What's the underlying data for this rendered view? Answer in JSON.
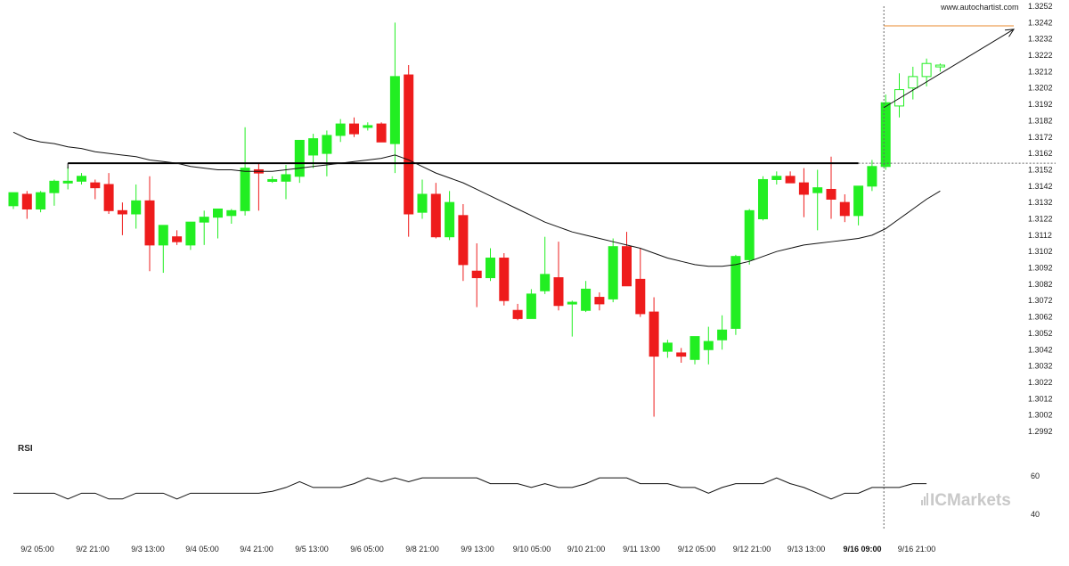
{
  "watermark": "www.autochartist.com",
  "brand": {
    "text": "ICMarkets"
  },
  "colors": {
    "bull": "#22ee22",
    "bear": "#ee1c1c",
    "wick": "#222222",
    "level": "#000000",
    "target": "#e88a2e",
    "ma": "#111111",
    "dashed": "#666666"
  },
  "chart_data": [
    {
      "type": "candlestick",
      "title": "",
      "ylim": [
        1.2992,
        1.3252
      ],
      "y_ticks": [
        "1.3252",
        "1.3242",
        "1.3232",
        "1.3222",
        "1.3212",
        "1.3202",
        "1.3192",
        "1.3182",
        "1.3172",
        "1.3162",
        "1.3152",
        "1.3142",
        "1.3132",
        "1.3122",
        "1.3112",
        "1.3102",
        "1.3092",
        "1.3082",
        "1.3072",
        "1.3062",
        "1.3052",
        "1.3042",
        "1.3032",
        "1.3022",
        "1.3012",
        "1.3002",
        "1.2992"
      ],
      "x_ticks": [
        "9/2 05:00",
        "9/2 21:00",
        "9/3 13:00",
        "9/4 05:00",
        "9/4 21:00",
        "9/5 13:00",
        "9/6 05:00",
        "9/8 21:00",
        "9/9 13:00",
        "9/10 05:00",
        "9/10 21:00",
        "9/11 13:00",
        "9/12 05:00",
        "9/12 21:00",
        "9/13 13:00",
        "9/16 09:00",
        "9/16 21:00"
      ],
      "x_tick_bold": "9/16 09:00",
      "candles": [
        [
          1.313,
          1.3138,
          1.3128,
          1.3138
        ],
        [
          1.3137,
          1.3139,
          1.3122,
          1.3128
        ],
        [
          1.3128,
          1.3139,
          1.3126,
          1.3138
        ],
        [
          1.3138,
          1.3146,
          1.313,
          1.3145
        ],
        [
          1.3145,
          1.3154,
          1.314,
          1.3145
        ],
        [
          1.3145,
          1.315,
          1.3143,
          1.3148
        ],
        [
          1.3144,
          1.3146,
          1.3134,
          1.3141
        ],
        [
          1.3143,
          1.315,
          1.3125,
          1.3127
        ],
        [
          1.3127,
          1.3132,
          1.3112,
          1.3125
        ],
        [
          1.3125,
          1.3143,
          1.3116,
          1.3133
        ],
        [
          1.3133,
          1.3148,
          1.309,
          1.3106
        ],
        [
          1.3106,
          1.3117,
          1.3089,
          1.3118
        ],
        [
          1.3111,
          1.3115,
          1.3106,
          1.3108
        ],
        [
          1.3106,
          1.312,
          1.3103,
          1.312
        ],
        [
          1.312,
          1.3127,
          1.3106,
          1.3123
        ],
        [
          1.3123,
          1.3128,
          1.311,
          1.3128
        ],
        [
          1.3124,
          1.3128,
          1.3119,
          1.3127
        ],
        [
          1.3127,
          1.3178,
          1.3124,
          1.3153
        ],
        [
          1.3152,
          1.3156,
          1.3127,
          1.315
        ],
        [
          1.3146,
          1.3148,
          1.3144,
          1.3146
        ],
        [
          1.3145,
          1.3155,
          1.3134,
          1.3149
        ],
        [
          1.3148,
          1.3168,
          1.3144,
          1.317
        ],
        [
          1.3161,
          1.3174,
          1.3153,
          1.3171
        ],
        [
          1.3162,
          1.3176,
          1.3148,
          1.3173
        ],
        [
          1.3173,
          1.3183,
          1.3169,
          1.318
        ],
        [
          1.318,
          1.3184,
          1.3172,
          1.3174
        ],
        [
          1.3179,
          1.3181,
          1.3176,
          1.3179
        ],
        [
          1.318,
          1.3181,
          1.3169,
          1.3169
        ],
        [
          1.3168,
          1.3242,
          1.315,
          1.3209
        ],
        [
          1.321,
          1.3216,
          1.3111,
          1.3125
        ],
        [
          1.3126,
          1.3146,
          1.3122,
          1.3137
        ],
        [
          1.3137,
          1.3144,
          1.311,
          1.3111
        ],
        [
          1.3111,
          1.3139,
          1.3109,
          1.3132
        ],
        [
          1.3124,
          1.3131,
          1.3084,
          1.3094
        ],
        [
          1.309,
          1.3107,
          1.3068,
          1.3086
        ],
        [
          1.3086,
          1.3104,
          1.3084,
          1.3098
        ],
        [
          1.3098,
          1.3101,
          1.3069,
          1.3072
        ],
        [
          1.3066,
          1.307,
          1.306,
          1.3061
        ],
        [
          1.3061,
          1.3079,
          1.3062,
          1.3076
        ],
        [
          1.3078,
          1.3111,
          1.3076,
          1.3088
        ],
        [
          1.3086,
          1.3108,
          1.3066,
          1.3069
        ],
        [
          1.307,
          1.3072,
          1.305,
          1.3071
        ],
        [
          1.3066,
          1.3084,
          1.3065,
          1.3079
        ],
        [
          1.3074,
          1.3077,
          1.3066,
          1.307
        ],
        [
          1.3073,
          1.311,
          1.3071,
          1.3105
        ],
        [
          1.3105,
          1.3114,
          1.3081,
          1.3081
        ],
        [
          1.3085,
          1.3104,
          1.3062,
          1.3064
        ],
        [
          1.3065,
          1.3074,
          1.3001,
          1.3038
        ],
        [
          1.3041,
          1.3048,
          1.3037,
          1.3046
        ],
        [
          1.304,
          1.3043,
          1.3034,
          1.3038
        ],
        [
          1.3036,
          1.305,
          1.3033,
          1.305
        ],
        [
          1.3042,
          1.3056,
          1.3033,
          1.3047
        ],
        [
          1.3048,
          1.3063,
          1.3042,
          1.3054
        ],
        [
          1.3055,
          1.31,
          1.3051,
          1.3099
        ],
        [
          1.3097,
          1.3128,
          1.3094,
          1.3127
        ],
        [
          1.3122,
          1.3148,
          1.3121,
          1.3146
        ],
        [
          1.3146,
          1.3151,
          1.3143,
          1.3148
        ],
        [
          1.3148,
          1.3151,
          1.3144,
          1.3144
        ],
        [
          1.3144,
          1.3153,
          1.3123,
          1.3137
        ],
        [
          1.3138,
          1.3152,
          1.3115,
          1.3141
        ],
        [
          1.314,
          1.316,
          1.3122,
          1.3134
        ],
        [
          1.3132,
          1.3137,
          1.312,
          1.3124
        ],
        [
          1.3124,
          1.3141,
          1.3118,
          1.3142
        ],
        [
          1.3142,
          1.3158,
          1.3139,
          1.3154
        ],
        [
          1.3154,
          1.3198,
          1.3152,
          1.3193
        ],
        [
          1.3191,
          1.3211,
          1.3184,
          1.3201
        ],
        [
          1.3202,
          1.3215,
          1.3195,
          1.3209
        ],
        [
          1.3209,
          1.322,
          1.3203,
          1.3217
        ],
        [
          1.3215,
          1.3217,
          1.3212,
          1.3216
        ]
      ],
      "moving_average": [
        1.3175,
        1.3171,
        1.3169,
        1.3168,
        1.3166,
        1.3165,
        1.3163,
        1.3162,
        1.3161,
        1.316,
        1.3158,
        1.3157,
        1.3156,
        1.3154,
        1.3153,
        1.3152,
        1.3152,
        1.3151,
        1.3151,
        1.3151,
        1.3152,
        1.3153,
        1.3154,
        1.3155,
        1.3156,
        1.3157,
        1.3158,
        1.3159,
        1.3161,
        1.3158,
        1.3154,
        1.315,
        1.3147,
        1.3144,
        1.314,
        1.3136,
        1.3132,
        1.3128,
        1.3124,
        1.312,
        1.3117,
        1.3114,
        1.3112,
        1.311,
        1.3108,
        1.3106,
        1.3104,
        1.3101,
        1.3098,
        1.3096,
        1.3094,
        1.3093,
        1.3093,
        1.3094,
        1.3096,
        1.3099,
        1.3102,
        1.3104,
        1.3106,
        1.3107,
        1.3108,
        1.3109,
        1.311,
        1.3112,
        1.3116,
        1.3122,
        1.3128,
        1.3134,
        1.3139
      ],
      "support_level": 1.3156,
      "target_level": 1.324,
      "breakout_point": [
        64,
        1.319
      ],
      "projection_end": [
        70,
        1.3239
      ]
    },
    {
      "type": "line",
      "title": "RSI",
      "ylim": [
        36,
        66
      ],
      "y_ticks": [
        "60",
        "40"
      ],
      "values": [
        51,
        51,
        51,
        51,
        48,
        51,
        51,
        48,
        48,
        51,
        51,
        51,
        48,
        51,
        51,
        51,
        51,
        51,
        51,
        52,
        54,
        57,
        54,
        54,
        54,
        56,
        59,
        57,
        59,
        57,
        59,
        59,
        59,
        59,
        59,
        56,
        56,
        56,
        54,
        56,
        54,
        54,
        56,
        59,
        59,
        59,
        56,
        56,
        56,
        54,
        54,
        51,
        54,
        56,
        56,
        56,
        59,
        56,
        54,
        51,
        48,
        51,
        51,
        54,
        54,
        54,
        56,
        56
      ]
    }
  ]
}
